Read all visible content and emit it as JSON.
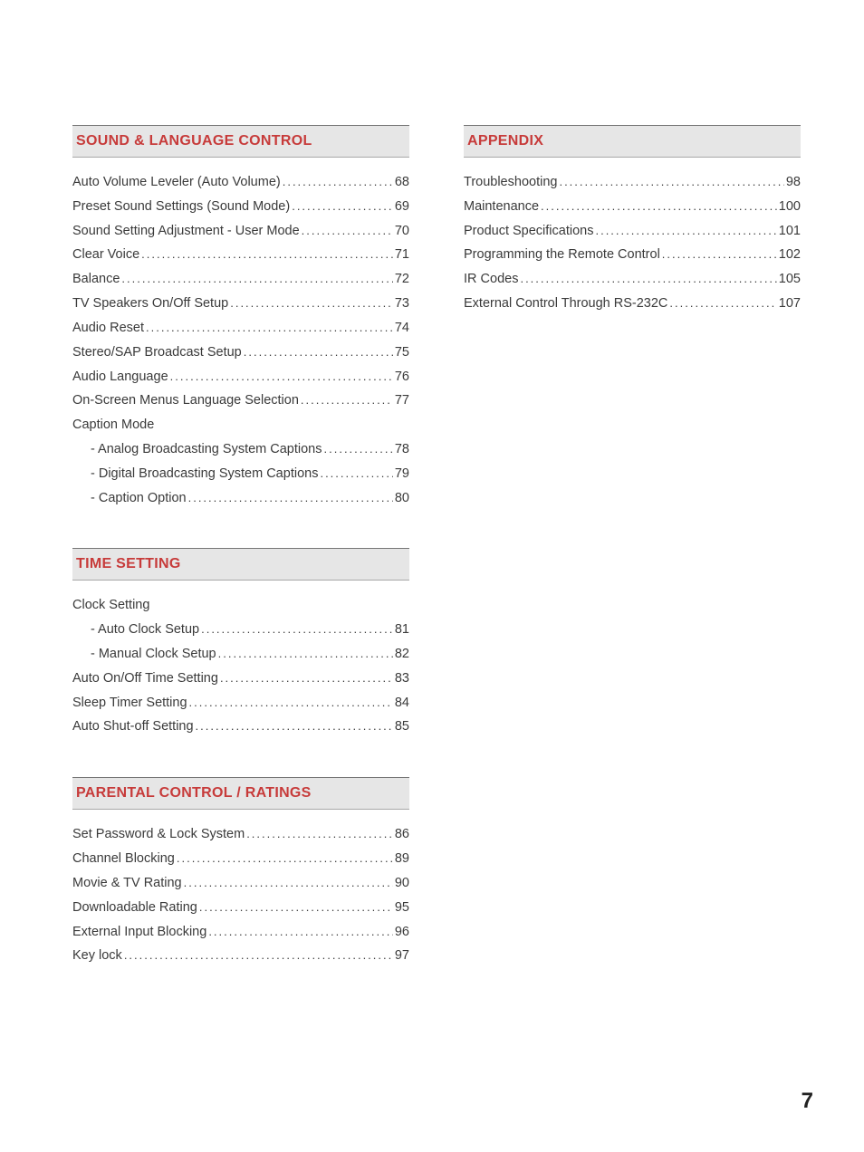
{
  "page_number": "7",
  "colors": {
    "section_title": "#c73b3a",
    "header_bg": "#e6e6e6",
    "header_border_top": "#757575",
    "header_border_bottom": "#a8a8a8",
    "text": "#3a3a3a",
    "page_bg": "#ffffff"
  },
  "typography": {
    "body_fontsize": 14.5,
    "title_fontsize": 16,
    "pagenum_fontsize": 24
  },
  "left_column": [
    {
      "title": "SOUND & LANGUAGE CONTROL",
      "entries": [
        {
          "label": "Auto Volume Leveler (Auto Volume)",
          "page": "68"
        },
        {
          "label": "Preset Sound Settings (Sound Mode)",
          "page": "69"
        },
        {
          "label": "Sound Setting Adjustment - User Mode",
          "page": "70"
        },
        {
          "label": "Clear Voice",
          "page": "71"
        },
        {
          "label": "Balance",
          "page": "72"
        },
        {
          "label": "TV Speakers On/Off Setup",
          "page": "73"
        },
        {
          "label": "Audio Reset",
          "page": "74"
        },
        {
          "label": "Stereo/SAP Broadcast Setup",
          "page": "75"
        },
        {
          "label": "Audio Language",
          "page": "76"
        },
        {
          "label": "On-Screen Menus Language Selection",
          "page": "77"
        },
        {
          "label": "Caption Mode",
          "heading": true
        },
        {
          "label": "- Analog Broadcasting System Captions",
          "page": "78",
          "indent": true
        },
        {
          "label": "- Digital Broadcasting System Captions",
          "page": "79",
          "indent": true
        },
        {
          "label": "- Caption Option",
          "page": "80",
          "indent": true
        }
      ]
    },
    {
      "title": "TIME SETTING",
      "entries": [
        {
          "label": "Clock Setting",
          "heading": true
        },
        {
          "label": "- Auto Clock Setup",
          "page": "81",
          "indent": true
        },
        {
          "label": "- Manual Clock Setup",
          "page": "82",
          "indent": true
        },
        {
          "label": "Auto On/Off Time Setting",
          "page": "83"
        },
        {
          "label": "Sleep Timer Setting",
          "page": "84"
        },
        {
          "label": "Auto Shut-off Setting",
          "page": "85"
        }
      ]
    },
    {
      "title": "PARENTAL CONTROL / RATINGS",
      "entries": [
        {
          "label": "Set Password & Lock System",
          "page": "86"
        },
        {
          "label": "Channel Blocking",
          "page": "89"
        },
        {
          "label": "Movie & TV Rating",
          "page": "90"
        },
        {
          "label": "Downloadable Rating",
          "page": "95"
        },
        {
          "label": "External Input Blocking",
          "page": "96"
        },
        {
          "label": "Key lock",
          "page": "97"
        }
      ]
    }
  ],
  "right_column": [
    {
      "title": "APPENDIX",
      "entries": [
        {
          "label": "Troubleshooting",
          "page": "98"
        },
        {
          "label": "Maintenance",
          "page": "100"
        },
        {
          "label": "Product Specifications",
          "page": "101"
        },
        {
          "label": "Programming the Remote Control",
          "page": "102"
        },
        {
          "label": "IR Codes",
          "page": "105"
        },
        {
          "label": "External Control Through RS-232C",
          "page": "107"
        }
      ]
    }
  ]
}
